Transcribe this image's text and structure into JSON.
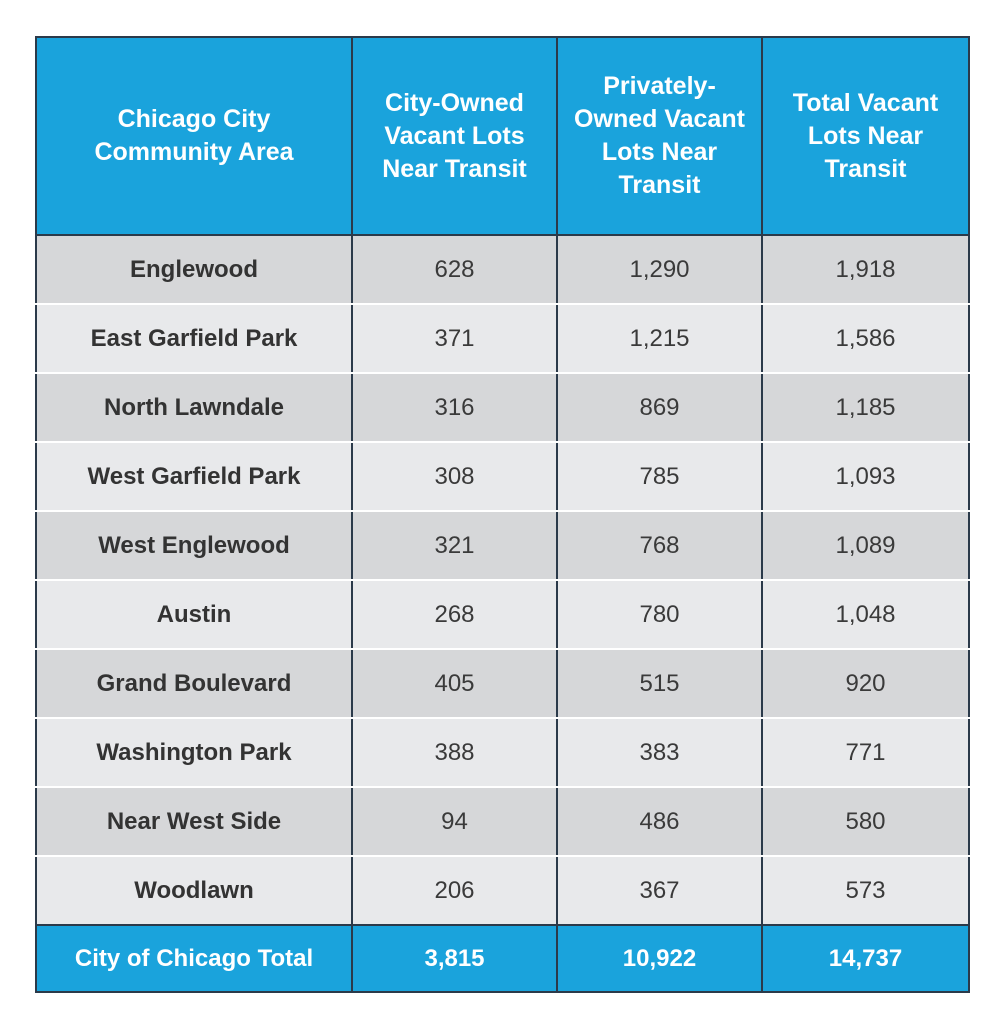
{
  "chart_data": {
    "type": "table",
    "columns": [
      "Chicago City Community Area",
      "City-Owned Vacant Lots Near Transit",
      "Privately-Owned Vacant Lots Near Transit",
      "Total Vacant Lots Near Transit"
    ],
    "header_lines": [
      [
        "Chicago City",
        "Community Area"
      ],
      [
        "City-Owned",
        "Vacant Lots",
        "Near Transit"
      ],
      [
        "Privately-",
        "Owned Vacant",
        "Lots Near",
        "Transit"
      ],
      [
        "Total Vacant",
        "Lots Near",
        "Transit"
      ]
    ],
    "rows": [
      [
        "Englewood",
        "628",
        "1,290",
        "1,918"
      ],
      [
        "East Garfield Park",
        "371",
        "1,215",
        "1,586"
      ],
      [
        "North Lawndale",
        "316",
        "869",
        "1,185"
      ],
      [
        "West Garfield Park",
        "308",
        "785",
        "1,093"
      ],
      [
        "West Englewood",
        "321",
        "768",
        "1,089"
      ],
      [
        "Austin",
        "268",
        "780",
        "1,048"
      ],
      [
        "Grand Boulevard",
        "405",
        "515",
        "920"
      ],
      [
        "Washington Park",
        "388",
        "383",
        "771"
      ],
      [
        "Near West Side",
        "94",
        "486",
        "580"
      ],
      [
        "Woodlawn",
        "206",
        "367",
        "573"
      ]
    ],
    "total_row": [
      "City of Chicago Total",
      "3,815",
      "10,922",
      "14,737"
    ],
    "colors": {
      "header_bg": "#1aa3dc",
      "header_text": "#ffffff",
      "row_dark": "#d6d7d9",
      "row_light": "#e8e9eb",
      "border": "#2b3a4a"
    }
  }
}
